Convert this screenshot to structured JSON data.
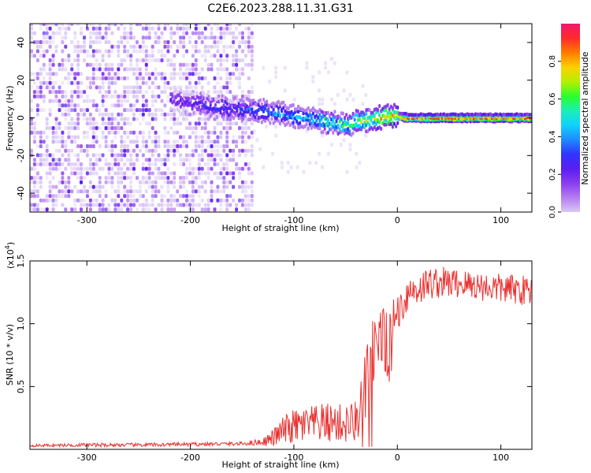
{
  "title": "C2E6.2023.288.11.31.G31",
  "colors": {
    "snr_line": "#e8312f",
    "axis": "#000000",
    "colorbar": [
      "#d9c8f5",
      "#b57cf0",
      "#8a3cf0",
      "#5a1ef0",
      "#2f35ff",
      "#1f8cff",
      "#10d2ff",
      "#19f0b4",
      "#2bff2b",
      "#b4f000",
      "#ffd000",
      "#ff7a00",
      "#ff2a2a",
      "#f0186e"
    ]
  },
  "chart_data": [
    {
      "type": "heatmap",
      "name": "spectrogram",
      "xlabel": "Height of straight line (km)",
      "ylabel": "Frequency (Hz)",
      "xlim": [
        -355,
        130
      ],
      "ylim": [
        -50,
        50
      ],
      "xticks": [
        -300,
        -200,
        -100,
        0,
        100
      ],
      "xtick_labels": [
        "-300",
        "-200",
        "-100",
        "0",
        "100"
      ],
      "yticks": [
        -40,
        -20,
        0,
        20,
        40
      ],
      "ytick_labels": [
        "-40",
        "-20",
        "0",
        "20",
        "40"
      ],
      "grid": false,
      "colorbar": {
        "label": "Normalized spectral amplitude",
        "range": [
          0,
          1
        ],
        "ticks": [
          0.0,
          0.2,
          0.4,
          0.6,
          0.8
        ],
        "tick_labels": [
          "0.0",
          "0.2",
          "0.4",
          "0.6",
          "0.8"
        ]
      },
      "ridge": {
        "x": [
          -220,
          -200,
          -180,
          -160,
          -140,
          -120,
          -100,
          -80,
          -70,
          -60,
          -50,
          -40,
          -30,
          -20,
          -10,
          0,
          10,
          50,
          100,
          130
        ],
        "frequency": [
          10,
          8,
          6,
          5,
          4,
          3,
          1,
          -1,
          -2,
          -3,
          -4,
          -2,
          -1,
          0,
          1,
          1,
          0,
          0,
          0,
          0
        ],
        "amplitude": [
          0.25,
          0.25,
          0.3,
          0.3,
          0.35,
          0.4,
          0.45,
          0.5,
          0.55,
          0.55,
          0.6,
          0.65,
          0.7,
          0.75,
          0.8,
          0.85,
          0.9,
          0.9,
          0.9,
          0.9
        ]
      },
      "noise_region_x": [
        -355,
        -140
      ]
    },
    {
      "type": "line",
      "name": "snr",
      "xlabel": "Height of straight line (km)",
      "ylabel": "SNR (10 * v/v)",
      "y_multiplier": "(x10",
      "y_multiplier_exponent": "4",
      "y_multiplier_close": ")",
      "xlim": [
        -355,
        130
      ],
      "ylim": [
        0,
        15000
      ],
      "xticks": [
        -300,
        -200,
        -100,
        0,
        100
      ],
      "xtick_labels": [
        "-300",
        "-200",
        "-100",
        "0",
        "100"
      ],
      "yticks": [
        5000,
        10000,
        15000
      ],
      "ytick_labels": [
        "0.5",
        "1.0",
        "1.5"
      ],
      "grid": false,
      "series": [
        {
          "x": [
            -355,
            -300,
            -250,
            -200,
            -150,
            -130,
            -120,
            -110,
            -100,
            -90,
            -80,
            -70,
            -60,
            -50,
            -40,
            -35,
            -30,
            -25,
            -20,
            -15,
            -10,
            -5,
            0,
            5,
            10,
            20,
            30,
            40,
            60,
            80,
            100,
            120,
            130
          ],
          "y": [
            300,
            350,
            350,
            400,
            450,
            600,
            900,
            1500,
            1800,
            1900,
            2000,
            2100,
            2100,
            2000,
            2200,
            3500,
            5500,
            7500,
            8500,
            9000,
            9800,
            10000,
            11000,
            11500,
            12500,
            12800,
            13200,
            13300,
            13200,
            13000,
            12800,
            12700,
            12600
          ],
          "noise_amplitude": [
            100,
            150,
            150,
            150,
            150,
            300,
            700,
            1200,
            1400,
            1500,
            1500,
            1600,
            1600,
            1600,
            1800,
            2500,
            3500,
            3500,
            2500,
            2200,
            2000,
            1800,
            1500,
            1500,
            1500,
            1400,
            1300,
            1300,
            1200,
            1200,
            1200,
            1200,
            1200
          ]
        }
      ]
    }
  ]
}
